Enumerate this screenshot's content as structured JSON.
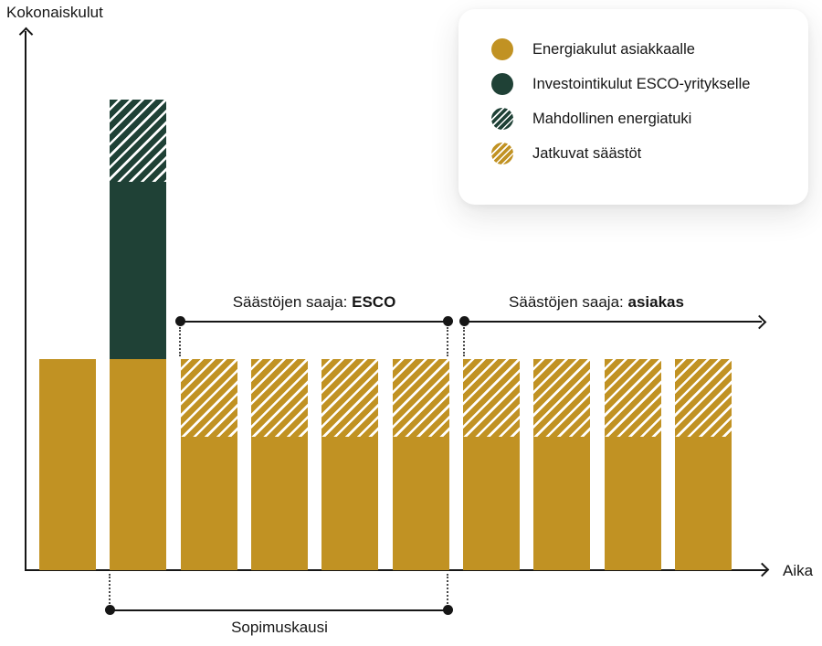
{
  "colors": {
    "gold": "#C19223",
    "green": "#1F4136",
    "ink": "#161616"
  },
  "chart_data": {
    "type": "bar",
    "stacked": true,
    "title": "",
    "ylabel": "Kokonaiskulut",
    "xlabel": "Aika",
    "axis_ticks": "none",
    "grid": false,
    "units": "relative; first-period total energy cost = 1.0",
    "legend_position": "top-right card",
    "legend": [
      {
        "key": "energy",
        "label": "Energiakulut asiakkaalle",
        "swatch": "solid-gold"
      },
      {
        "key": "investment",
        "label": "Investointikulut ESCO-yritykselle",
        "swatch": "solid-green"
      },
      {
        "key": "support",
        "label": "Mahdollinen energiatuki",
        "swatch": "hatched-green"
      },
      {
        "key": "savings",
        "label": "Jatkuvat säästöt",
        "swatch": "hatched-gold"
      }
    ],
    "bars": [
      {
        "period": 1,
        "segments": [
          {
            "type": "energy",
            "value": 1.0
          }
        ]
      },
      {
        "period": 2,
        "segments": [
          {
            "type": "energy",
            "value": 1.0
          },
          {
            "type": "investment",
            "value": 0.84
          },
          {
            "type": "support",
            "value": 0.39
          }
        ]
      },
      {
        "period": 3,
        "segments": [
          {
            "type": "energy",
            "value": 0.63
          },
          {
            "type": "savings",
            "value": 0.37
          }
        ]
      },
      {
        "period": 4,
        "segments": [
          {
            "type": "energy",
            "value": 0.63
          },
          {
            "type": "savings",
            "value": 0.37
          }
        ]
      },
      {
        "period": 5,
        "segments": [
          {
            "type": "energy",
            "value": 0.63
          },
          {
            "type": "savings",
            "value": 0.37
          }
        ]
      },
      {
        "period": 6,
        "segments": [
          {
            "type": "energy",
            "value": 0.63
          },
          {
            "type": "savings",
            "value": 0.37
          }
        ]
      },
      {
        "period": 7,
        "segments": [
          {
            "type": "energy",
            "value": 0.63
          },
          {
            "type": "savings",
            "value": 0.37
          }
        ]
      },
      {
        "period": 8,
        "segments": [
          {
            "type": "energy",
            "value": 0.63
          },
          {
            "type": "savings",
            "value": 0.37
          }
        ]
      },
      {
        "period": 9,
        "segments": [
          {
            "type": "energy",
            "value": 0.63
          },
          {
            "type": "savings",
            "value": 0.37
          }
        ]
      },
      {
        "period": 10,
        "segments": [
          {
            "type": "energy",
            "value": 0.63
          },
          {
            "type": "savings",
            "value": 0.37
          }
        ]
      }
    ],
    "annotations": {
      "esco": {
        "prefix": "Säästöjen saaja:",
        "bold": "ESCO",
        "span_bars": [
          3,
          6
        ],
        "style": "horizontal line above bars with dot at each end, dotted drops to bar tops"
      },
      "asiakas": {
        "prefix": "Säästöjen saaja:",
        "bold": "asiakas",
        "span_bars": [
          7,
          10
        ],
        "style": "horizontal line above bars with start dot and right arrowhead"
      },
      "contract": {
        "label": "Sopimuskausi",
        "span_bars": [
          2,
          6
        ],
        "style": "horizontal line below x-axis with dot at each end, dotted risers to axis"
      }
    }
  }
}
